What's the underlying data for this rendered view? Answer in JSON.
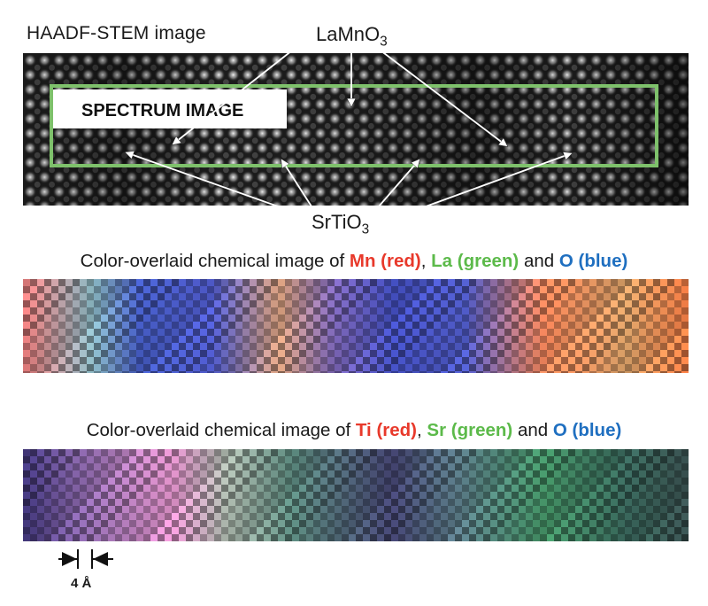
{
  "stem": {
    "title": "HAADF-STEM image",
    "box_label": "SPECTRUM IMAGE",
    "frame_color": "#7ec16b",
    "label_top": {
      "base": "LaMnO",
      "sub": "3"
    },
    "label_bottom": {
      "base": "SrTiO",
      "sub": "3"
    }
  },
  "map_mn_la_o": {
    "prefix": "Color-overlaid chemical image of ",
    "items": [
      {
        "text": "Mn (red)",
        "color": "#e8392b"
      },
      {
        "text": ", ",
        "color": ""
      },
      {
        "text": "La (green)",
        "color": "#5cba4a"
      },
      {
        "text": " and ",
        "color": ""
      },
      {
        "text": "O (blue)",
        "color": "#1f6fc0"
      }
    ]
  },
  "map_ti_sr_o": {
    "prefix": "Color-overlaid chemical image of ",
    "items": [
      {
        "text": "Ti (red)",
        "color": "#e8392b"
      },
      {
        "text": ", ",
        "color": ""
      },
      {
        "text": "Sr (green)",
        "color": "#5cba4a"
      },
      {
        "text": " and ",
        "color": ""
      },
      {
        "text": "O (blue)",
        "color": "#1f6fc0"
      }
    ]
  },
  "scale_bar": {
    "label": "4 Å"
  }
}
